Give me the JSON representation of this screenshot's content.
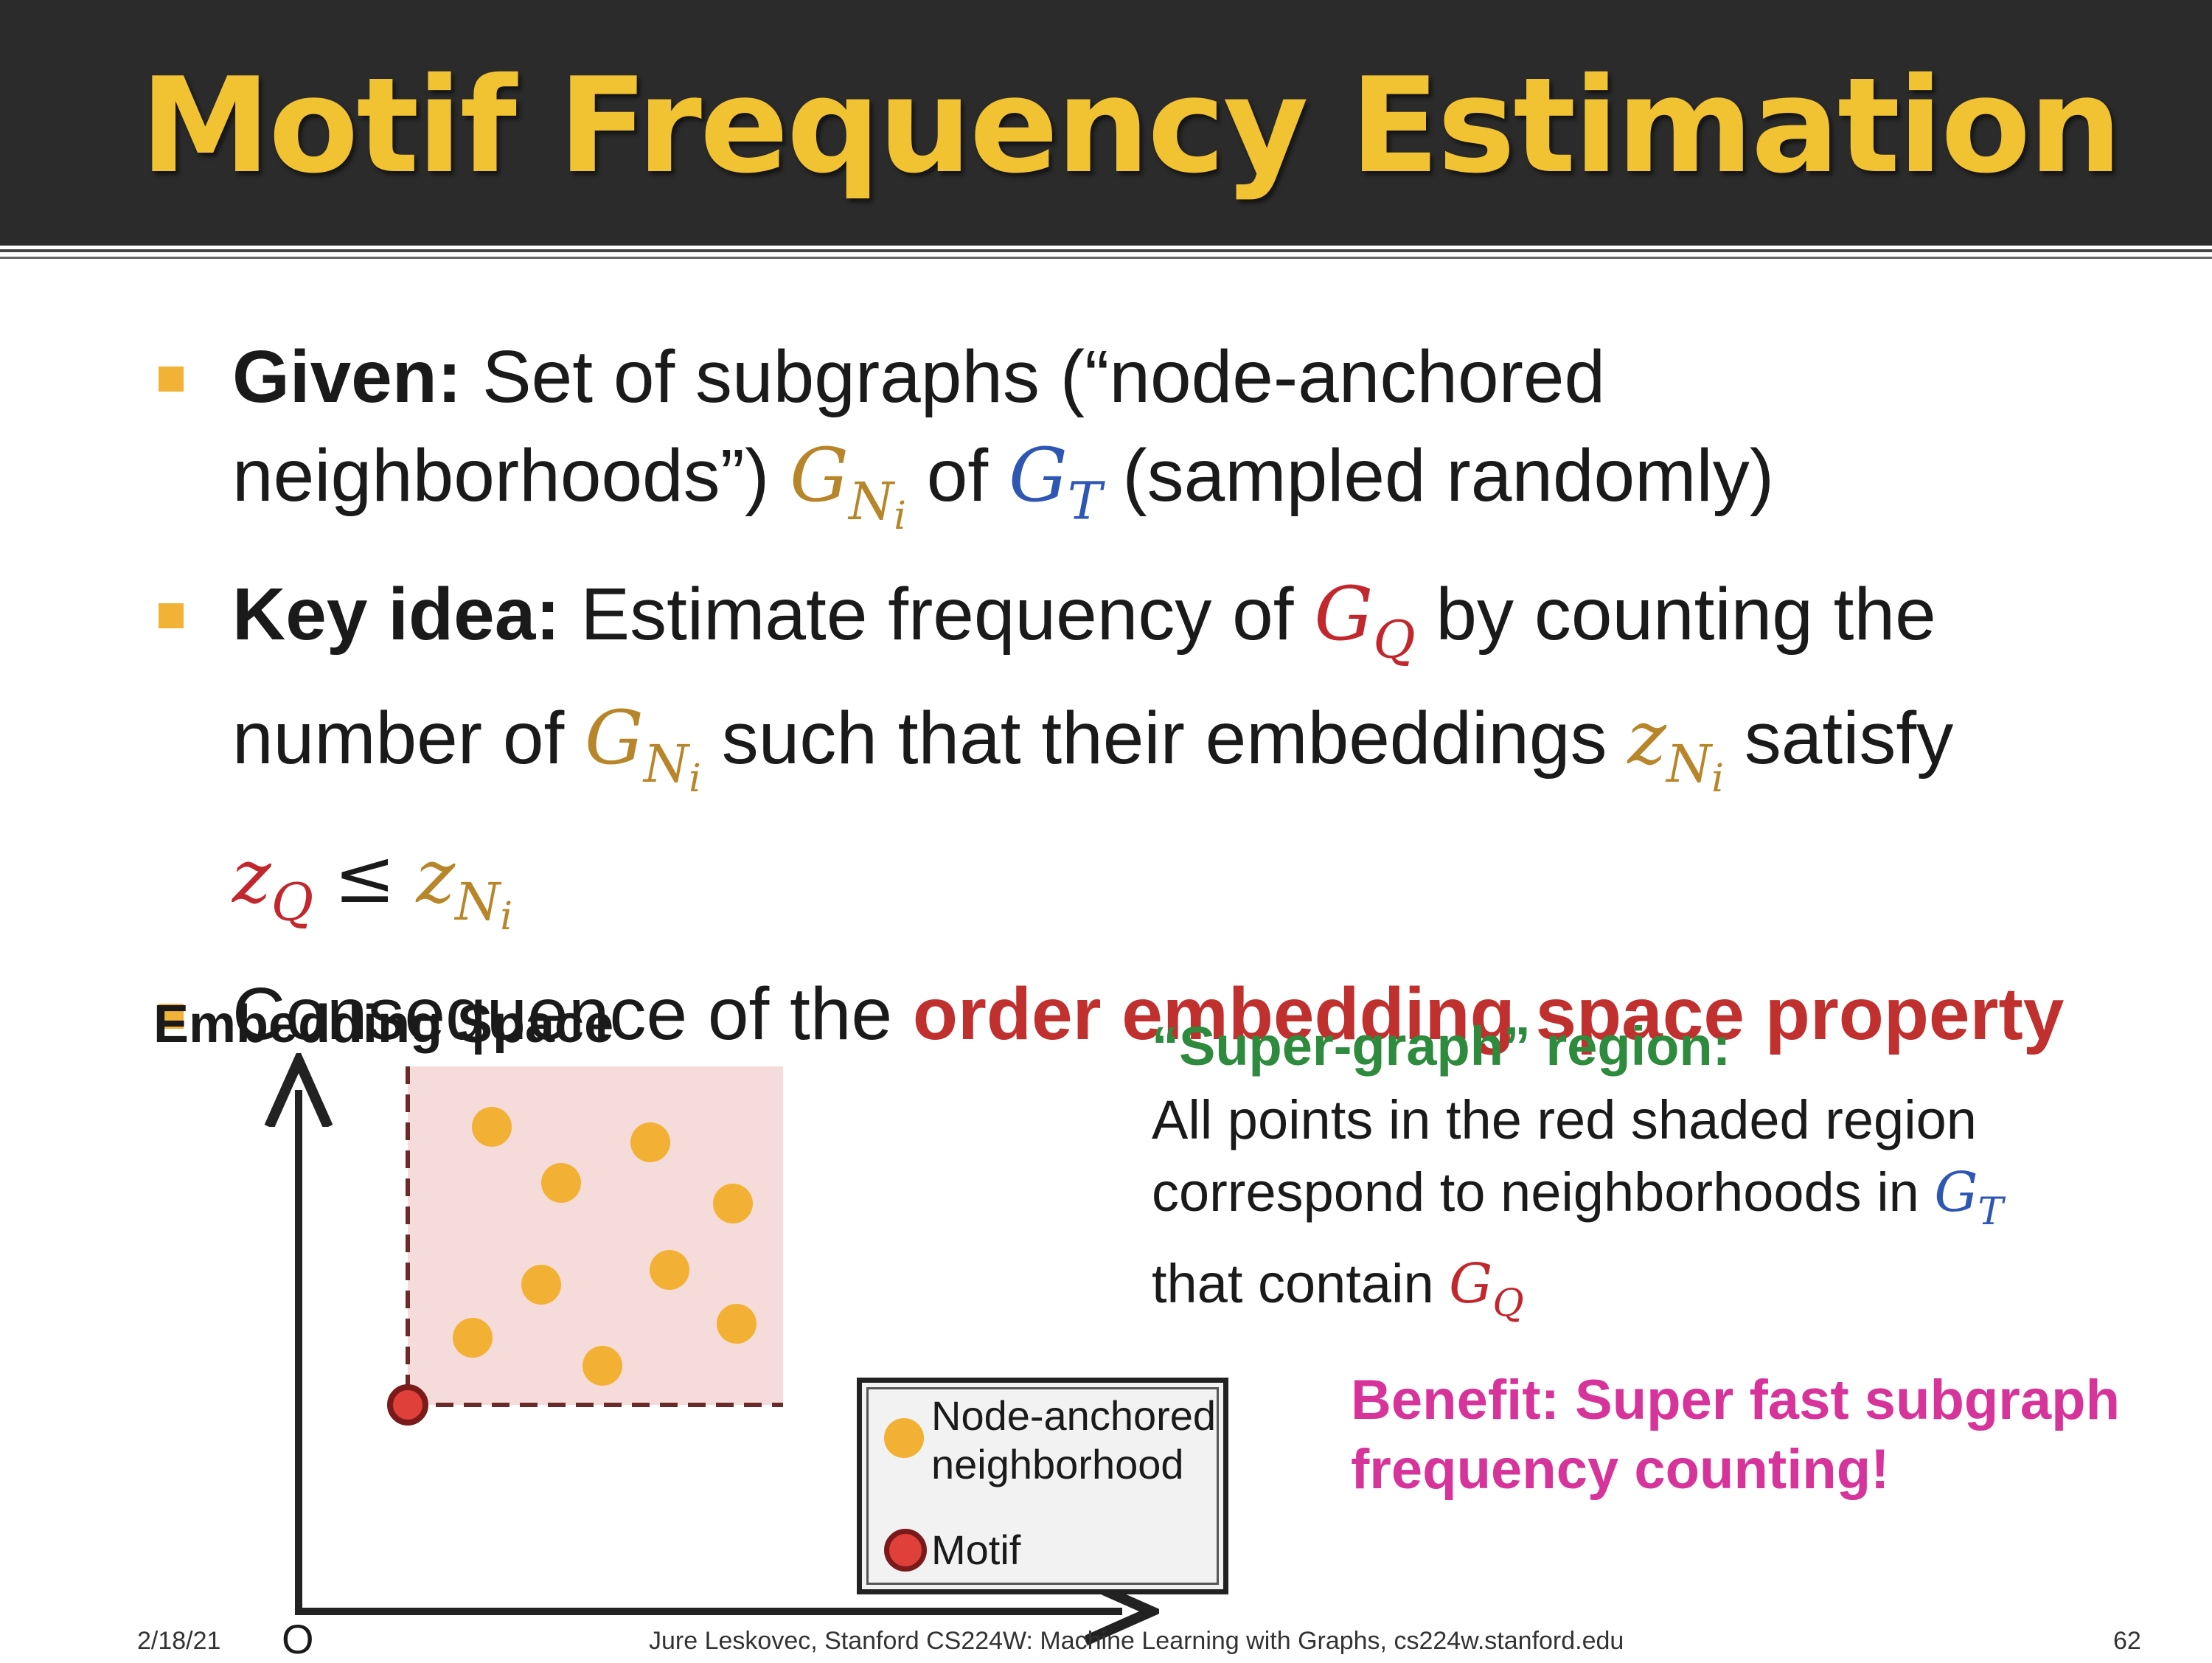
{
  "slide": {
    "title": "Motif Frequency Estimation",
    "bullets": {
      "b1": {
        "label": "Given:",
        "text1": " Set of subgraphs (“node-anchored",
        "text2": "neighborhoods”) ",
        "text3": " of ",
        "text4": " (sampled randomly)"
      },
      "b2": {
        "label": "Key idea:",
        "text1": " Estimate frequency of ",
        "text2": " by counting the",
        "text3": "number of ",
        "text4": " such that their embeddings ",
        "text5": " satisfy"
      },
      "b3": {
        "text1": "Consequence of the ",
        "highlight": "order embedding space property"
      }
    },
    "math": {
      "G": "G",
      "z": "z",
      "N": "N",
      "i": "i",
      "T": "T",
      "Q": "Q",
      "leq": "≤"
    },
    "figure": {
      "space_label": "Embedding Space",
      "origin_label": "O",
      "region_title": "“Super-graph” region:",
      "region_text1": "All points in the red shaded region",
      "region_text2": "correspond to neighborhoods in ",
      "region_text3": "that contain ",
      "benefit_line1": "Benefit: Super fast subgraph",
      "benefit_line2": "frequency counting!",
      "legend": {
        "item1_line1": "Node-anchored",
        "item1_line2": "neighborhood",
        "item2": "Motif"
      }
    },
    "footer": {
      "date": "2/18/21",
      "credit": "Jure Leskovec, Stanford CS224W: Machine Learning with Graphs, cs224w.stanford.edu",
      "page": "62"
    },
    "colors": {
      "title": "#f1c232",
      "header_bg": "#2b2b2b",
      "bullet_marker": "#f1b236",
      "neighborhood": "#b8862a",
      "target_graph": "#2e56b3",
      "query": "#c1272d",
      "region_fill": "#f5dcda",
      "point": "#f2b134",
      "motif": "#e0403a",
      "region_title": "#2e8b3e",
      "benefit": "#d6349a"
    }
  }
}
